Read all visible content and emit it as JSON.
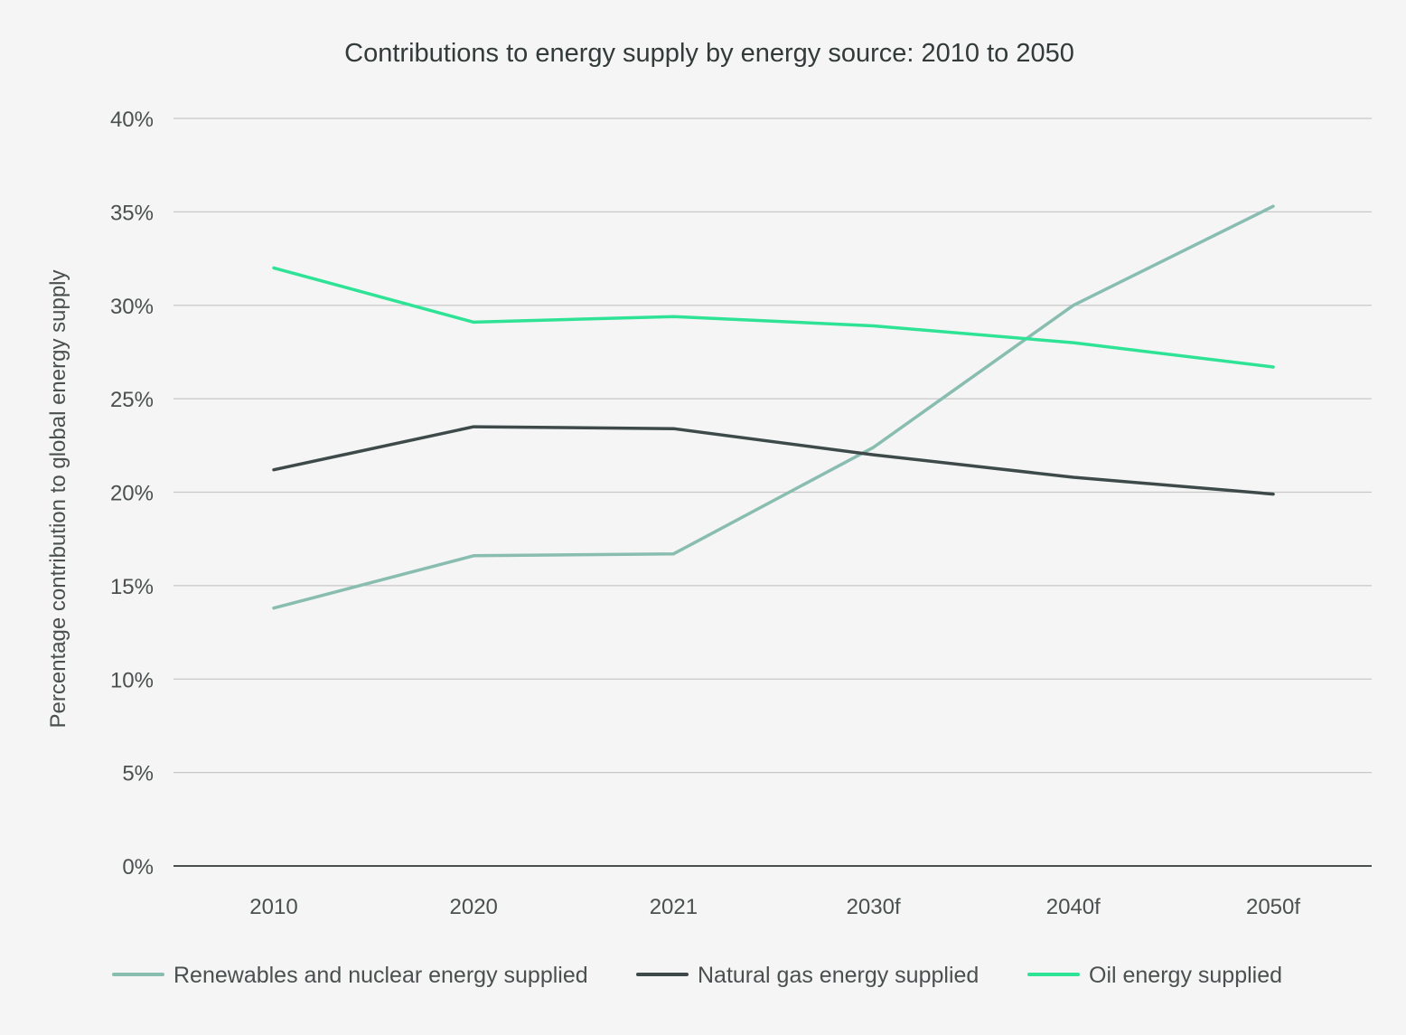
{
  "chart_data": {
    "type": "line",
    "title": "Contributions to energy supply by energy source: 2010 to 2050",
    "ylabel": "Percentage contribution to global energy supply",
    "xlabel": "",
    "categories": [
      "2010",
      "2020",
      "2021",
      "2030f",
      "2040f",
      "2050f"
    ],
    "ylim": [
      0,
      40
    ],
    "yticks": [
      "0%",
      "5%",
      "10%",
      "15%",
      "20%",
      "25%",
      "30%",
      "35%",
      "40%"
    ],
    "ytick_values": [
      0,
      5,
      10,
      15,
      20,
      25,
      30,
      35,
      40
    ],
    "grid": true,
    "legend_position": "bottom",
    "series": [
      {
        "name": "Renewables and nuclear energy supplied",
        "color": "#88bdb0",
        "values": [
          13.8,
          16.6,
          16.7,
          22.4,
          30.0,
          35.3
        ]
      },
      {
        "name": "Natural gas energy supplied",
        "color": "#3e4a4a",
        "values": [
          21.2,
          23.5,
          23.4,
          22.0,
          20.8,
          19.9
        ]
      },
      {
        "name": "Oil energy supplied",
        "color": "#2ee396",
        "values": [
          32.0,
          29.1,
          29.4,
          28.9,
          28.0,
          26.7
        ]
      }
    ]
  }
}
